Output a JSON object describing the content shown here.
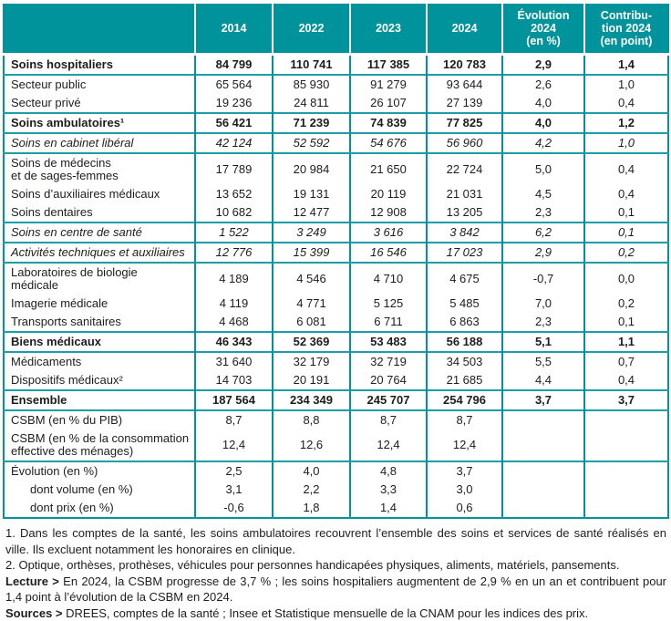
{
  "table": {
    "columns": [
      "",
      "2014",
      "2022",
      "2023",
      "2024",
      "Évolution\n2024\n(en %)",
      "Contribu-\ntion 2024\n(en point)"
    ],
    "rows": [
      {
        "label": "Soins hospitaliers",
        "style": "bold",
        "sep": false,
        "indent": false,
        "values": [
          "84 799",
          "110 741",
          "117 385",
          "120 783",
          "2,9",
          "1,4"
        ]
      },
      {
        "label": "Secteur public",
        "style": "normal",
        "sep": true,
        "indent": false,
        "values": [
          "65 564",
          "85 930",
          "91 279",
          "93 644",
          "2,6",
          "1,0"
        ]
      },
      {
        "label": "Secteur privé",
        "style": "normal",
        "sep": false,
        "indent": false,
        "values": [
          "19 236",
          "24 811",
          "26 107",
          "27 139",
          "4,0",
          "0,4"
        ]
      },
      {
        "label": "Soins ambulatoires¹",
        "style": "bold",
        "sep": true,
        "indent": false,
        "values": [
          "56 421",
          "71 239",
          "74 839",
          "77 825",
          "4,0",
          "1,2"
        ]
      },
      {
        "label": "Soins en cabinet libéral",
        "style": "italic",
        "sep": true,
        "indent": false,
        "values": [
          "42 124",
          "52 592",
          "54 676",
          "56 960",
          "4,2",
          "1,0"
        ]
      },
      {
        "label": "Soins de médecins\net de sages-femmes",
        "style": "normal",
        "sep": true,
        "indent": false,
        "values": [
          "17 789",
          "20 984",
          "21 650",
          "22 724",
          "5,0",
          "0,4"
        ]
      },
      {
        "label": "Soins d’auxiliaires médicaux",
        "style": "normal",
        "sep": false,
        "indent": false,
        "values": [
          "13 652",
          "19 131",
          "20 119",
          "21 031",
          "4,5",
          "0,4"
        ]
      },
      {
        "label": "Soins dentaires",
        "style": "normal",
        "sep": false,
        "indent": false,
        "values": [
          "10 682",
          "12 477",
          "12 908",
          "13 205",
          "2,3",
          "0,1"
        ]
      },
      {
        "label": "Soins en centre de santé",
        "style": "italic",
        "sep": true,
        "indent": false,
        "values": [
          "1 522",
          "3 249",
          "3 616",
          "3 842",
          "6,2",
          "0,1"
        ]
      },
      {
        "label": "Activités techniques et auxiliaires",
        "style": "italic",
        "sep": true,
        "indent": false,
        "values": [
          "12 776",
          "15 399",
          "16 546",
          "17 023",
          "2,9",
          "0,2"
        ]
      },
      {
        "label": "Laboratoires de biologie\nmédicale",
        "style": "normal",
        "sep": true,
        "indent": false,
        "values": [
          "4 189",
          "4 546",
          "4 710",
          "4 675",
          "-0,7",
          "0,0"
        ]
      },
      {
        "label": "Imagerie médicale",
        "style": "normal",
        "sep": false,
        "indent": false,
        "values": [
          "4 119",
          "4 771",
          "5 125",
          "5 485",
          "7,0",
          "0,2"
        ]
      },
      {
        "label": "Transports sanitaires",
        "style": "normal",
        "sep": false,
        "indent": false,
        "values": [
          "4 468",
          "6 081",
          "6 711",
          "6 863",
          "2,3",
          "0,1"
        ]
      },
      {
        "label": "Biens médicaux",
        "style": "bold",
        "sep": true,
        "indent": false,
        "values": [
          "46 343",
          "52 369",
          "53 483",
          "56 188",
          "5,1",
          "1,1"
        ]
      },
      {
        "label": "Médicaments",
        "style": "normal",
        "sep": true,
        "indent": false,
        "values": [
          "31 640",
          "32 179",
          "32 719",
          "34 503",
          "5,5",
          "0,7"
        ]
      },
      {
        "label": "Dispositifs médicaux²",
        "style": "normal",
        "sep": false,
        "indent": false,
        "values": [
          "14 703",
          "20 191",
          "20 764",
          "21 685",
          "4,4",
          "0,4"
        ]
      },
      {
        "label": "Ensemble",
        "style": "bold",
        "sep": true,
        "indent": false,
        "values": [
          "187 564",
          "234 349",
          "245 707",
          "254 796",
          "3,7",
          "3,7"
        ]
      },
      {
        "label": "CSBM (en % du PIB)",
        "style": "normal",
        "sep": true,
        "indent": false,
        "values": [
          "8,7",
          "8,8",
          "8,7",
          "8,7",
          "",
          ""
        ]
      },
      {
        "label": "CSBM (en % de la consommation\neffective des ménages)",
        "style": "normal",
        "sep": false,
        "indent": false,
        "values": [
          "12,4",
          "12,6",
          "12,4",
          "12,4",
          "",
          ""
        ]
      },
      {
        "label": "Évolution (en %)",
        "style": "normal",
        "sep": true,
        "indent": false,
        "values": [
          "2,5",
          "4,0",
          "4,8",
          "3,7",
          "",
          ""
        ]
      },
      {
        "label": "dont volume (en %)",
        "style": "normal",
        "sep": false,
        "indent": true,
        "values": [
          "3,1",
          "2,2",
          "3,3",
          "3,0",
          "",
          ""
        ]
      },
      {
        "label": "dont prix (en %)",
        "style": "normal",
        "sep": false,
        "indent": true,
        "values": [
          "-0,6",
          "1,8",
          "1,4",
          "0,6",
          "",
          ""
        ]
      }
    ]
  },
  "footnotes": [
    {
      "prefix": "",
      "text": "1. Dans les comptes de la santé, les soins ambulatoires recouvrent l’ensemble des soins et services de santé réalisés en ville. Ils excluent notamment les honoraires en clinique."
    },
    {
      "prefix": "",
      "text": "2. Optique, orthèses, prothèses, véhicules pour personnes handicapées physiques, aliments, matériels, pansements."
    },
    {
      "prefix": "Lecture >",
      "text": " En 2024, la CSBM progresse de 3,7 % ; les soins hospitaliers augmentent de 2,9 % en un an et contribuent pour 1,4 point à l’évolution de la CSBM en 2024."
    },
    {
      "prefix": "Sources >",
      "text": "DREES, comptes de la santé ; Insee et Statistique mensuelle de la CNAM pour les indices des prix."
    }
  ],
  "colors": {
    "teal_header": "#00939b",
    "teal_separator": "#1b9ea6",
    "text": "#1d1d1b"
  }
}
